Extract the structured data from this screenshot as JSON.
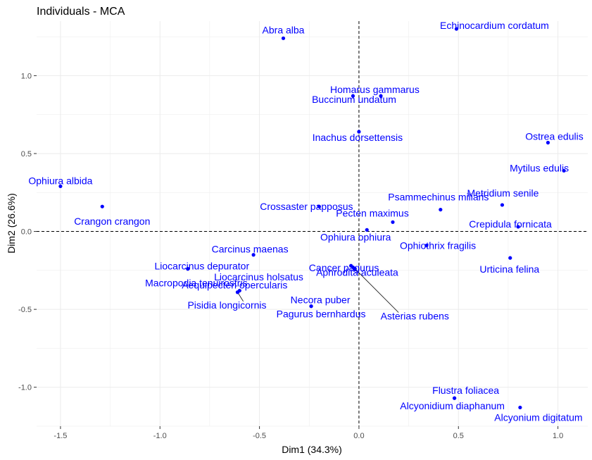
{
  "chart_data": {
    "type": "scatter",
    "title": "Individuals - MCA",
    "xlabel": "Dim1 (34.3%)",
    "ylabel": "Dim2 (26.6%)",
    "xlim": [
      -1.62,
      1.15
    ],
    "ylim": [
      -1.25,
      1.35
    ],
    "xticks": [
      -1.5,
      -1.0,
      -0.5,
      0.0,
      0.5,
      1.0
    ],
    "xtick_labels": [
      "-1.5",
      "-1.0",
      "-0.5",
      "0.0",
      "0.5",
      "1.0"
    ],
    "yticks": [
      -1.0,
      -0.5,
      0.0,
      0.5,
      1.0
    ],
    "ytick_labels": [
      "-1.0",
      "-0.5",
      "0.0",
      "0.5",
      "1.0"
    ],
    "grid": true,
    "reference_lines": {
      "x": 0,
      "y": 0,
      "style": "dashed"
    },
    "point_color": "#0000FF",
    "points": [
      {
        "label": "Abra alba",
        "x": -0.38,
        "y": 1.24
      },
      {
        "label": "Echinocardium cordatum",
        "x": 0.49,
        "y": 1.3
      },
      {
        "label": "Homarus gammarus",
        "x": -0.03,
        "y": 0.87
      },
      {
        "label": "Buccinum undatum",
        "x": 0.11,
        "y": 0.87
      },
      {
        "label": "Inachus dorsettensis",
        "x": 0.0,
        "y": 0.64
      },
      {
        "label": "Ostrea edulis",
        "x": 0.95,
        "y": 0.57
      },
      {
        "label": "Mytilus edulis",
        "x": 1.03,
        "y": 0.39
      },
      {
        "label": "Ophiura albida",
        "x": -1.5,
        "y": 0.29
      },
      {
        "label": "Crangon crangon",
        "x": -1.29,
        "y": 0.16
      },
      {
        "label": "Crossaster papposus",
        "x": -0.2,
        "y": 0.16
      },
      {
        "label": "Psammechinus miliaris",
        "x": 0.41,
        "y": 0.14
      },
      {
        "label": "Metridium senile",
        "x": 0.72,
        "y": 0.17
      },
      {
        "label": "Pecten maximus",
        "x": 0.17,
        "y": 0.06
      },
      {
        "label": "Crepidula fornicata",
        "x": 0.8,
        "y": 0.03
      },
      {
        "label": "Ophiura ophiura",
        "x": 0.04,
        "y": 0.01
      },
      {
        "label": "Carcinus maenas",
        "x": -0.53,
        "y": -0.15
      },
      {
        "label": "Ophiothrix fragilis",
        "x": 0.34,
        "y": -0.09
      },
      {
        "label": "Liocarcinus depurator",
        "x": -0.86,
        "y": -0.24
      },
      {
        "label": "Macropodia tenuirostris",
        "x": -0.86,
        "y": -0.24
      },
      {
        "label": "Cancer pagurus",
        "x": -0.04,
        "y": -0.22
      },
      {
        "label": "Aphrodita aculeata",
        "x": -0.03,
        "y": -0.23
      },
      {
        "label": "Urticina felina",
        "x": 0.76,
        "y": -0.17
      },
      {
        "label": "Asterias rubens",
        "x": -0.02,
        "y": -0.24
      },
      {
        "label": "Liocarcinus holsatus",
        "x": -0.61,
        "y": -0.39
      },
      {
        "label": "Aequipecten opercularis",
        "x": -0.6,
        "y": -0.38
      },
      {
        "label": "Necora puber",
        "x": -0.24,
        "y": -0.48
      },
      {
        "label": "Pisidia longicornis",
        "x": -0.61,
        "y": -0.39
      },
      {
        "label": "Pagurus bernhardus",
        "x": -0.24,
        "y": -0.48
      },
      {
        "label": "Flustra foliacea",
        "x": 0.48,
        "y": -1.07
      },
      {
        "label": "Alcyonidium diaphanum",
        "x": 0.48,
        "y": -1.07
      },
      {
        "label": "Alcyonium digitatum",
        "x": 0.81,
        "y": -1.13
      }
    ],
    "label_offsets": [
      [
        0,
        -7
      ],
      [
        54,
        0
      ],
      [
        31,
        -4
      ],
      [
        -38,
        10
      ],
      [
        -2,
        13
      ],
      [
        9,
        -4
      ],
      [
        -35,
        1
      ],
      [
        0,
        -3
      ],
      [
        14,
        26
      ],
      [
        -18,
        5
      ],
      [
        -3,
        -13
      ],
      [
        1,
        -12
      ],
      [
        -29,
        -8
      ],
      [
        -11,
        1
      ],
      [
        -16,
        15
      ],
      [
        -5,
        -3
      ],
      [
        16,
        5
      ],
      [
        20,
        1
      ],
      [
        12,
        25
      ],
      [
        -10,
        8
      ],
      [
        6,
        12
      ],
      [
        -1,
        21
      ],
      [
        85,
        72
      ],
      [
        30,
        -17
      ],
      [
        -7,
        -3
      ],
      [
        13,
        -4
      ],
      [
        -15,
        23
      ],
      [
        14,
        16
      ],
      [
        16,
        -6
      ],
      [
        -3,
        16
      ],
      [
        26,
        19
      ]
    ],
    "label_leaders": [
      22,
      26
    ]
  }
}
